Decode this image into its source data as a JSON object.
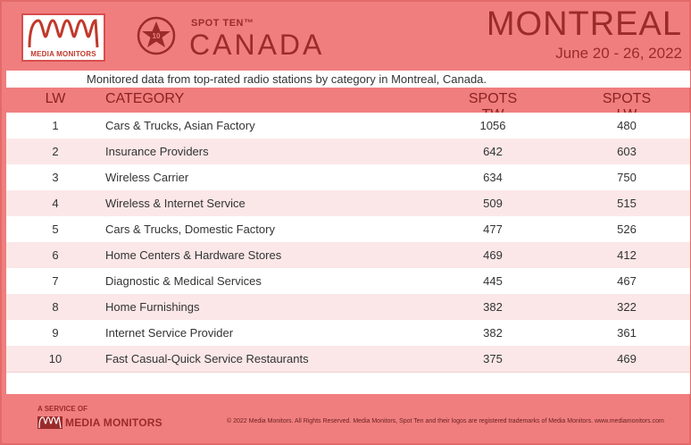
{
  "header": {
    "logo_label": "MEDIA MONITORS",
    "badge_number": "10",
    "brand_line": "SPOT TEN™",
    "country": "CANADA",
    "city": "MONTREAL",
    "dates": "June 20 - 26, 2022",
    "subtitle": "Monitored data from top-rated radio stations by category in Montreal, Canada."
  },
  "table": {
    "columns": {
      "lw": "LW",
      "category": "CATEGORY",
      "spots_tw": "SPOTS TW",
      "spots_lw": "SPOTS LW"
    },
    "rows": [
      {
        "lw": "1",
        "category": "Cars & Trucks, Asian Factory",
        "spots_tw": "1056",
        "spots_lw": "480"
      },
      {
        "lw": "2",
        "category": "Insurance Providers",
        "spots_tw": "642",
        "spots_lw": "603"
      },
      {
        "lw": "3",
        "category": "Wireless Carrier",
        "spots_tw": "634",
        "spots_lw": "750"
      },
      {
        "lw": "4",
        "category": "Wireless & Internet Service",
        "spots_tw": "509",
        "spots_lw": "515"
      },
      {
        "lw": "5",
        "category": "Cars & Trucks, Domestic Factory",
        "spots_tw": "477",
        "spots_lw": "526"
      },
      {
        "lw": "6",
        "category": "Home Centers & Hardware Stores",
        "spots_tw": "469",
        "spots_lw": "412"
      },
      {
        "lw": "7",
        "category": "Diagnostic & Medical Services",
        "spots_tw": "445",
        "spots_lw": "467"
      },
      {
        "lw": "8",
        "category": "Home Furnishings",
        "spots_tw": "382",
        "spots_lw": "322"
      },
      {
        "lw": "9",
        "category": "Internet Service Provider",
        "spots_tw": "382",
        "spots_lw": "361"
      },
      {
        "lw": "10",
        "category": "Fast Casual-Quick Service Restaurants",
        "spots_tw": "375",
        "spots_lw": "469"
      }
    ]
  },
  "footer": {
    "service_of": "A SERVICE OF",
    "logo_text": "MEDIA MONITORS",
    "copyright": "© 2022 Media Monitors. All Rights Reserved. Media Monitors, Spot Ten and their logos are registered trademarks of Media Monitors. www.mediamonitors.com"
  },
  "colors": {
    "background": "#f07e7e",
    "accent": "#9b2b2b",
    "row_alt": "#fbe7e7"
  }
}
